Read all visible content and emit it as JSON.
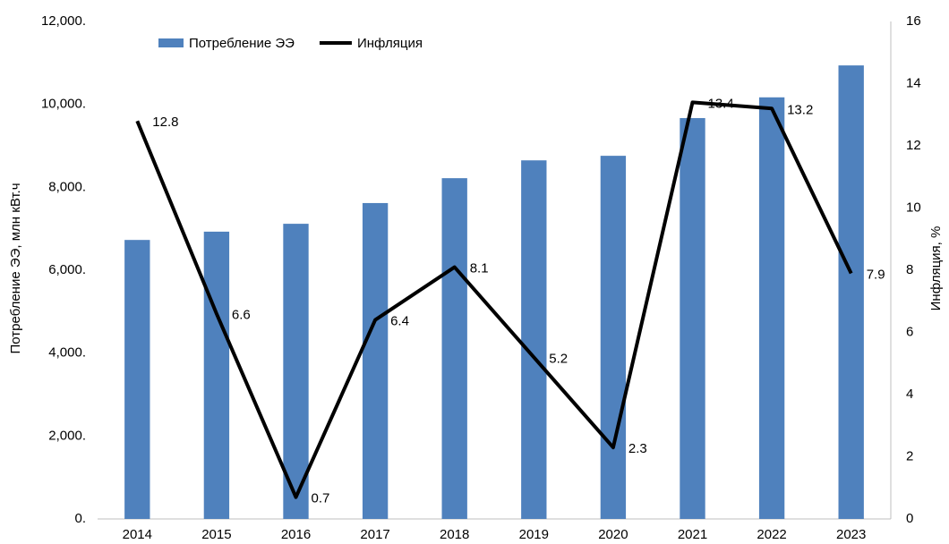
{
  "chart_data": {
    "type": "bar-line",
    "categories": [
      "2014",
      "2015",
      "2016",
      "2017",
      "2018",
      "2019",
      "2020",
      "2021",
      "2022",
      "2023"
    ],
    "series": [
      {
        "name": "Потребление ЭЭ",
        "color": "#4f81bd",
        "type": "bar",
        "axis": "y",
        "values": [
          6730,
          6930,
          7120,
          7620,
          8220,
          8650,
          8760,
          9670,
          10170,
          10940
        ]
      },
      {
        "name": "Инфляция",
        "color": "#000000",
        "type": "line",
        "axis": "y2",
        "values": [
          12.8,
          6.6,
          0.7,
          6.4,
          8.1,
          5.2,
          2.3,
          13.4,
          13.2,
          7.9
        ]
      }
    ],
    "ylabel": "Потребление ЭЭ, млн кВт.ч",
    "y2label": "Инфляция, %",
    "ylim": [
      0,
      12000
    ],
    "yticks": [
      {
        "value": 0,
        "label": "0."
      },
      {
        "value": 2000,
        "label": "2,000."
      },
      {
        "value": 4000,
        "label": "4,000."
      },
      {
        "value": 6000,
        "label": "6,000."
      },
      {
        "value": 8000,
        "label": "8,000."
      },
      {
        "value": 10000,
        "label": "10,000."
      },
      {
        "value": 12000,
        "label": "12,000."
      }
    ],
    "y2lim": [
      0,
      16
    ],
    "y2ticks": [
      0,
      2,
      4,
      6,
      8,
      10,
      12,
      14,
      16
    ],
    "legend": "top"
  }
}
